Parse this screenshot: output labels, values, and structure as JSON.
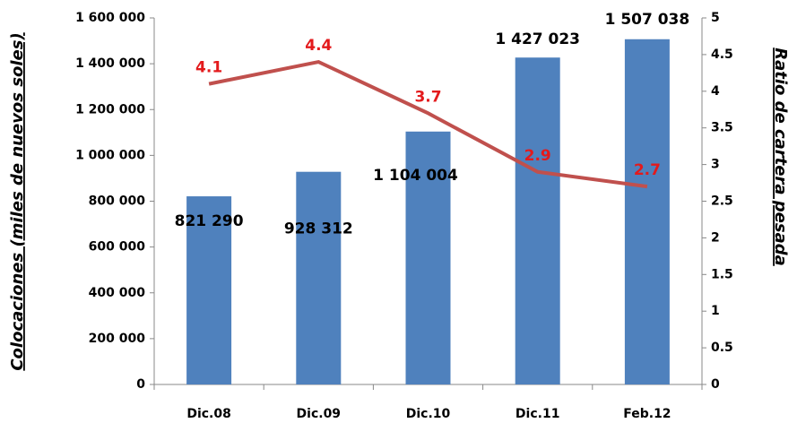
{
  "chart_data": {
    "type": "bar",
    "categories": [
      "Dic.08",
      "Dic.09",
      "Dic.10",
      "Dic.11",
      "Feb.12"
    ],
    "y_label": "Colocaciones (miles de nuevos soles)",
    "y2_label": "Ratio de cartera pesada",
    "series": [
      {
        "type": "bar",
        "color": "#4f81bd",
        "values": [
          821290,
          928312,
          1104004,
          1427023,
          1507038
        ],
        "value_labels": [
          "821 290",
          "928 312",
          "1 104 004",
          "1 427 023",
          "1 507 038"
        ]
      },
      {
        "type": "line",
        "axis": "y2",
        "color": "#c0504d",
        "label_color": "#e31a1c",
        "values": [
          4.1,
          4.4,
          3.7,
          2.9,
          2.7
        ]
      }
    ],
    "ylim": [
      0,
      1600000
    ],
    "yticks": [
      0,
      {
        "value": 200000,
        "label": "200 000"
      },
      {
        "value": 400000,
        "label": "400 000"
      },
      {
        "value": 600000,
        "label": "600 000"
      },
      {
        "value": 800000,
        "label": "800 000"
      },
      {
        "value": 1000000,
        "label": "1 000 000"
      },
      {
        "value": 1200000,
        "label": "1 200 000"
      },
      {
        "value": 1400000,
        "label": "1 400 000"
      },
      {
        "value": 1600000,
        "label": "1 600 000"
      }
    ],
    "y2lim": [
      0,
      5
    ],
    "y2ticks": [
      0,
      0.5,
      1,
      1.5,
      2,
      2.5,
      3,
      3.5,
      4,
      4.5,
      5
    ],
    "grid": false
  }
}
